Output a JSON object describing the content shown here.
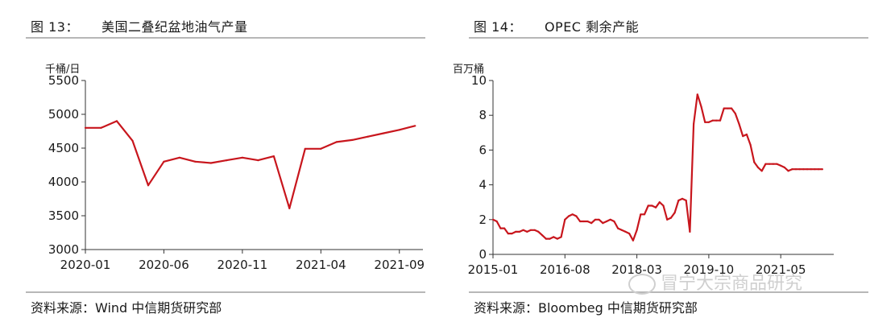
{
  "left": {
    "fig_label": "图 13：",
    "title": "美国二叠纪盆地油气产量",
    "source": "资料来源：Wind 中信期货研究部"
  },
  "right": {
    "fig_label": "图 14：",
    "title": "OPEC 剩余产能",
    "source": "资料来源：Bloombeg 中信期货研究部"
  },
  "watermark": "冒宁大宗商品研究",
  "chart_data": [
    {
      "type": "line",
      "ylabel": "千桶/日",
      "ylim": [
        3000,
        5500
      ],
      "yticks": [
        3000,
        3500,
        4000,
        4500,
        5000,
        5500
      ],
      "xticks": [
        "2020-01",
        "2020-06",
        "2020-11",
        "2021-04",
        "2021-09"
      ],
      "xlim": [
        0,
        21.5
      ],
      "color": "#c8161d",
      "x": [
        0,
        1,
        2,
        3,
        4,
        5,
        6,
        7,
        8,
        9,
        10,
        11,
        12,
        13,
        14,
        15,
        16,
        17,
        18,
        19,
        20,
        21
      ],
      "values": [
        4800,
        4800,
        4900,
        4610,
        3950,
        4300,
        4360,
        4300,
        4280,
        4320,
        4360,
        4320,
        4380,
        3610,
        4490,
        4490,
        4590,
        4620,
        4670,
        4720,
        4770,
        4830
      ]
    },
    {
      "type": "line",
      "ylabel": "百万桶",
      "ylim": [
        0,
        10
      ],
      "yticks": [
        0,
        2,
        4,
        6,
        8,
        10
      ],
      "xticks": [
        "2015-01",
        "2016-08",
        "2018-03",
        "2019-10",
        "2021-05"
      ],
      "xlim": [
        0,
        90
      ],
      "color": "#c8161d",
      "x": [
        0,
        1,
        2,
        3,
        4,
        5,
        6,
        7,
        8,
        9,
        10,
        11,
        12,
        13,
        14,
        15,
        16,
        17,
        18,
        19,
        20,
        21,
        22,
        23,
        24,
        25,
        26,
        27,
        28,
        29,
        30,
        31,
        32,
        33,
        34,
        35,
        36,
        37,
        38,
        39,
        40,
        41,
        42,
        43,
        44,
        45,
        46,
        47,
        48,
        49,
        50,
        51,
        52,
        53,
        54,
        55,
        56,
        57,
        58,
        59,
        60,
        61,
        62,
        63,
        64,
        65,
        66,
        67,
        68,
        69,
        70,
        71,
        72,
        73,
        74,
        75,
        76,
        77,
        78,
        79,
        80,
        81,
        82,
        83,
        84,
        85,
        86,
        87
      ],
      "values": [
        2.0,
        1.9,
        1.5,
        1.5,
        1.2,
        1.2,
        1.3,
        1.3,
        1.4,
        1.3,
        1.4,
        1.4,
        1.3,
        1.1,
        0.9,
        0.9,
        1.0,
        0.9,
        1.0,
        2.0,
        2.2,
        2.3,
        2.2,
        1.9,
        1.9,
        1.9,
        1.8,
        2.0,
        2.0,
        1.8,
        1.9,
        2.0,
        1.9,
        1.5,
        1.4,
        1.3,
        1.2,
        0.8,
        1.4,
        2.3,
        2.3,
        2.8,
        2.8,
        2.7,
        3.0,
        2.8,
        2.0,
        2.1,
        2.4,
        3.1,
        3.2,
        3.1,
        1.3,
        7.5,
        9.2,
        8.5,
        7.6,
        7.6,
        7.7,
        7.7,
        7.7,
        8.4,
        8.4,
        8.4,
        8.1,
        7.5,
        6.8,
        6.9,
        6.3,
        5.3,
        5.0,
        4.8,
        5.2,
        5.2,
        5.2,
        5.2,
        5.1,
        5.0,
        4.8,
        4.9,
        4.9,
        4.9,
        4.9,
        4.9,
        4.9,
        4.9,
        4.9,
        4.9
      ]
    }
  ]
}
